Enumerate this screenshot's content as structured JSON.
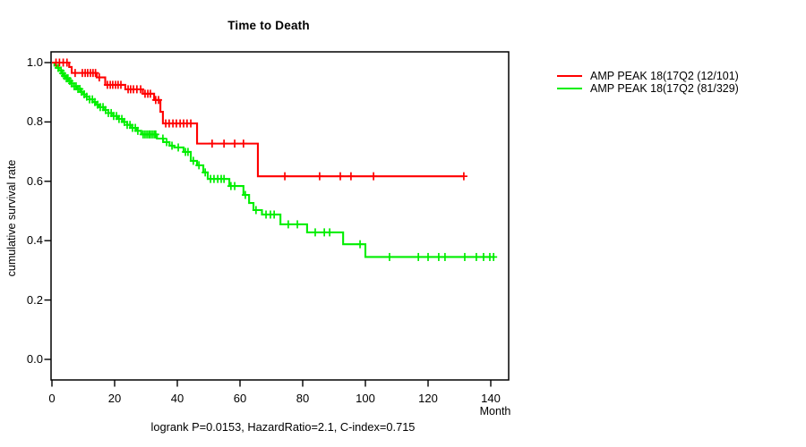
{
  "chart_data": {
    "type": "line",
    "subtype": "kaplan-meier-step-survival",
    "title": "Time to Death",
    "xlabel": "Month",
    "ylabel": "cumulative survival rate",
    "annotation": "logrank P=0.0153, HazardRatio=2.1, C-index=0.715",
    "xlim": [
      0,
      146
    ],
    "ylim": [
      0,
      1.0
    ],
    "x_ticks": [
      0,
      20,
      40,
      60,
      80,
      100,
      120,
      140
    ],
    "x_tick_labels": [
      "0",
      "20",
      "40",
      "60",
      "80",
      "100",
      "120",
      "140"
    ],
    "y_ticks": [
      0.0,
      0.2,
      0.4,
      0.6,
      0.8,
      1.0
    ],
    "y_tick_labels": [
      "0.0",
      "0.2",
      "0.4",
      "0.6",
      "0.8",
      "1.0"
    ],
    "grid": false,
    "legend_position": "right-outside-top",
    "series": [
      {
        "name": "AMP PEAK 18(17Q2 (12/101)",
        "color": "#ff0000",
        "events": "12/101",
        "end_month": 131.5,
        "steps": [
          [
            0,
            1.0
          ],
          [
            5.5,
            0.985
          ],
          [
            6.3,
            0.965
          ],
          [
            14.3,
            0.95
          ],
          [
            17,
            0.925
          ],
          [
            23.4,
            0.91
          ],
          [
            29,
            0.895
          ],
          [
            32.6,
            0.874
          ],
          [
            34.6,
            0.834
          ],
          [
            35.4,
            0.795
          ],
          [
            46.3,
            0.727
          ],
          [
            65.7,
            0.617
          ]
        ],
        "censor_months": [
          1.3,
          2.4,
          3.6,
          4.8,
          7.4,
          9.7,
          10.6,
          11.4,
          12.3,
          13.1,
          13.9,
          15.1,
          17.7,
          18.6,
          19.4,
          20.3,
          21.1,
          22.0,
          24.3,
          25.1,
          26.0,
          27.1,
          28.3,
          29.7,
          30.6,
          31.4,
          33.1,
          34.0,
          36.3,
          37.4,
          38.6,
          39.7,
          40.9,
          42.0,
          43.1,
          44.3,
          51.1,
          54.9,
          58.3,
          61.1,
          74.3,
          85.4,
          92.0,
          95.4,
          102.6,
          131.4
        ]
      },
      {
        "name": "AMP PEAK 18(17Q2 (81/329)",
        "color": "#00ee00",
        "events": "81/329",
        "end_month": 141.3,
        "steps": [
          [
            0,
            1.0
          ],
          [
            0.8,
            0.99
          ],
          [
            1.5,
            0.982
          ],
          [
            2.2,
            0.973
          ],
          [
            3,
            0.964
          ],
          [
            3.8,
            0.955
          ],
          [
            4.5,
            0.947
          ],
          [
            5.3,
            0.938
          ],
          [
            6,
            0.93
          ],
          [
            7,
            0.92
          ],
          [
            8,
            0.911
          ],
          [
            9,
            0.902
          ],
          [
            10,
            0.893
          ],
          [
            11,
            0.885
          ],
          [
            12,
            0.876
          ],
          [
            13,
            0.867
          ],
          [
            14,
            0.858
          ],
          [
            15,
            0.85
          ],
          [
            16.5,
            0.84
          ],
          [
            18,
            0.83
          ],
          [
            19.5,
            0.82
          ],
          [
            21,
            0.81
          ],
          [
            22.5,
            0.8
          ],
          [
            24,
            0.79
          ],
          [
            25.5,
            0.78
          ],
          [
            27,
            0.77
          ],
          [
            28.5,
            0.758
          ],
          [
            33.5,
            0.744
          ],
          [
            35.5,
            0.732
          ],
          [
            37.5,
            0.72
          ],
          [
            39,
            0.714
          ],
          [
            42,
            0.699
          ],
          [
            44.3,
            0.669
          ],
          [
            46.3,
            0.654
          ],
          [
            48.3,
            0.63
          ],
          [
            49.7,
            0.608
          ],
          [
            56.6,
            0.584
          ],
          [
            61.1,
            0.554
          ],
          [
            62.9,
            0.527
          ],
          [
            64.3,
            0.503
          ],
          [
            67,
            0.488
          ],
          [
            72.9,
            0.455
          ],
          [
            81.4,
            0.428
          ],
          [
            92.9,
            0.388
          ],
          [
            100,
            0.345
          ]
        ],
        "censor_months": [
          2.0,
          2.9,
          3.4,
          4.0,
          4.6,
          5.1,
          5.7,
          6.3,
          7.1,
          7.7,
          8.3,
          8.9,
          9.4,
          10.3,
          11.1,
          12.0,
          12.9,
          13.7,
          14.6,
          15.4,
          16.3,
          17.1,
          18.0,
          18.9,
          19.7,
          20.6,
          21.4,
          22.3,
          23.1,
          24.0,
          24.9,
          25.7,
          26.6,
          27.4,
          29.1,
          29.7,
          30.3,
          30.9,
          31.4,
          32.0,
          32.6,
          33.1,
          35.4,
          36.6,
          38.3,
          40.3,
          42.6,
          43.4,
          45.1,
          46.9,
          48.9,
          50.6,
          51.7,
          52.9,
          54.0,
          54.9,
          57.1,
          58.3,
          61.7,
          65.1,
          68.3,
          69.7,
          70.9,
          75.4,
          78.3,
          84.0,
          86.9,
          88.6,
          98.3,
          107.7,
          116.9,
          120.0,
          123.4,
          125.4,
          131.7,
          135.4,
          137.7,
          139.7,
          140.9
        ]
      }
    ]
  }
}
